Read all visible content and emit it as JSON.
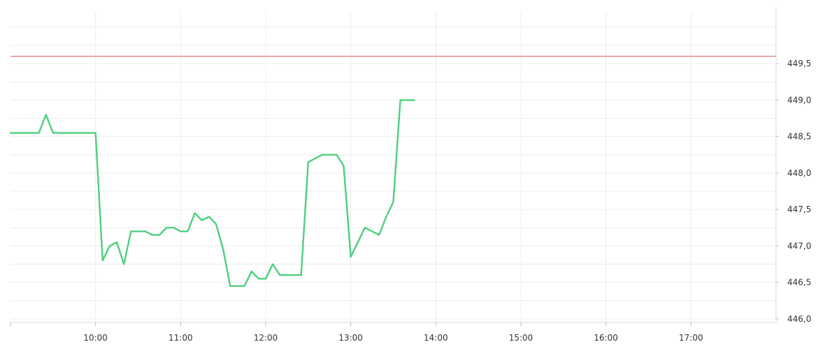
{
  "chart_data": {
    "type": "line",
    "title": "",
    "xlabel": "",
    "ylabel": "",
    "x_ticks": [
      "10:00",
      "11:00",
      "12:00",
      "13:00",
      "14:00",
      "15:00",
      "16:00",
      "17:00"
    ],
    "y_ticks": [
      "446,0",
      "446,5",
      "447,0",
      "447,5",
      "448,0",
      "448,5",
      "449,0",
      "449,5"
    ],
    "xlim": [
      "09:00",
      "18:00"
    ],
    "ylim": [
      445.95,
      450.2
    ],
    "grid": true,
    "reference_line": {
      "value": 449.6,
      "color": "#e05a5a"
    },
    "series": [
      {
        "color": "#4cd07d",
        "points": [
          [
            "09:00",
            448.55
          ],
          [
            "09:20",
            448.55
          ],
          [
            "09:25",
            448.8
          ],
          [
            "09:30",
            448.55
          ],
          [
            "10:00",
            448.55
          ],
          [
            "10:05",
            446.8
          ],
          [
            "10:10",
            447.0
          ],
          [
            "10:15",
            447.05
          ],
          [
            "10:20",
            446.75
          ],
          [
            "10:25",
            447.2
          ],
          [
            "10:35",
            447.2
          ],
          [
            "10:40",
            447.15
          ],
          [
            "10:45",
            447.15
          ],
          [
            "10:50",
            447.25
          ],
          [
            "10:55",
            447.25
          ],
          [
            "11:00",
            447.2
          ],
          [
            "11:05",
            447.2
          ],
          [
            "11:10",
            447.45
          ],
          [
            "11:15",
            447.35
          ],
          [
            "11:20",
            447.4
          ],
          [
            "11:25",
            447.3
          ],
          [
            "11:30",
            446.95
          ],
          [
            "11:35",
            446.45
          ],
          [
            "11:45",
            446.45
          ],
          [
            "11:50",
            446.65
          ],
          [
            "11:55",
            446.55
          ],
          [
            "12:00",
            446.55
          ],
          [
            "12:05",
            446.75
          ],
          [
            "12:10",
            446.6
          ],
          [
            "12:25",
            446.6
          ],
          [
            "12:30",
            448.15
          ],
          [
            "12:40",
            448.25
          ],
          [
            "12:50",
            448.25
          ],
          [
            "12:55",
            448.1
          ],
          [
            "13:00",
            446.85
          ],
          [
            "13:10",
            447.25
          ],
          [
            "13:20",
            447.15
          ],
          [
            "13:25",
            447.4
          ],
          [
            "13:30",
            447.6
          ],
          [
            "13:35",
            449.0
          ],
          [
            "13:45",
            449.0
          ]
        ]
      }
    ],
    "y_axis_position": "right"
  }
}
